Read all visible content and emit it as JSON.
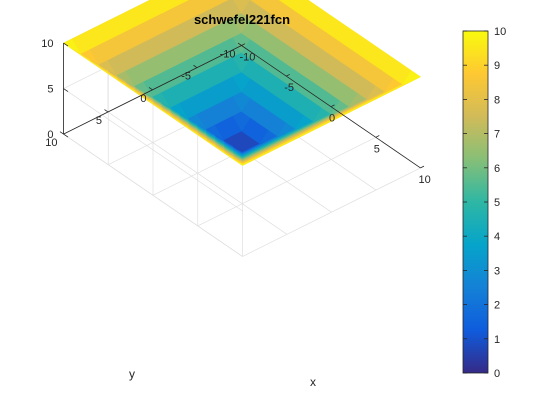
{
  "chart_data": {
    "type": "surface",
    "title": "schwefel221fcn",
    "function": "max(|x|, |y|)",
    "xlabel": "x",
    "ylabel": "y",
    "zlabel": "",
    "xlim": [
      -10,
      10
    ],
    "ylim": [
      -10,
      10
    ],
    "zlim": [
      0,
      10
    ],
    "x_ticks": [
      -10,
      -5,
      0,
      5,
      10
    ],
    "y_ticks": [
      -10,
      -5,
      0,
      5,
      10
    ],
    "z_ticks": [
      0,
      5,
      10
    ],
    "grid_step": 1,
    "minimum": {
      "x": 0,
      "y": 0,
      "z": 0
    },
    "colormap": "parula",
    "colorbar": {
      "placement": "right",
      "clim": [
        0,
        10
      ],
      "ticks": [
        "0",
        "1",
        "2",
        "3",
        "4",
        "5",
        "6",
        "7",
        "8",
        "9",
        "10"
      ]
    }
  },
  "colors": {
    "parula": [
      "#352a87",
      "#0f5cdd",
      "#1481d6",
      "#06a4ca",
      "#2eb7a4",
      "#87bf77",
      "#d1bb59",
      "#fec832",
      "#f9fb0e"
    ],
    "axis": "#262626",
    "grid": "#dfdfdf"
  }
}
